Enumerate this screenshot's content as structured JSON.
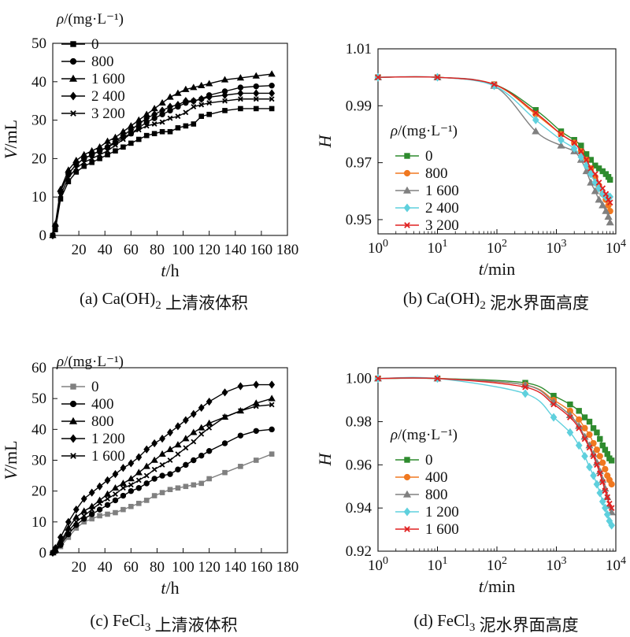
{
  "chart_data": [
    {
      "id": "a",
      "type": "line",
      "caption": "(a) Ca(OH)₂ 上清液体积",
      "xlabel_var": "t",
      "xlabel_unit": "/h",
      "ylabel_var": "V",
      "ylabel_unit": "/mL",
      "legend_title_var": "ρ",
      "legend_title_unit": "/(mg·L⁻¹)",
      "legend_position": "top-left",
      "xlim": [
        0,
        180
      ],
      "ylim": [
        0,
        50
      ],
      "xticks": [
        "20",
        "40",
        "60",
        "80",
        "100",
        "120",
        "140",
        "160",
        "180"
      ],
      "yticks": [
        "0",
        "10",
        "20",
        "30",
        "40",
        "50"
      ],
      "x": [
        0,
        2,
        6,
        12,
        18,
        24,
        30,
        36,
        42,
        48,
        54,
        60,
        66,
        72,
        78,
        84,
        90,
        96,
        102,
        108,
        114,
        120,
        132,
        144,
        156,
        168
      ],
      "series": [
        {
          "name": "0",
          "color": "#000000",
          "marker": "square",
          "values": [
            0,
            1.5,
            9.5,
            14,
            16.5,
            18,
            19,
            20,
            21,
            22,
            23,
            24,
            25,
            26,
            26.5,
            27,
            27,
            28,
            28.5,
            29,
            31,
            31.5,
            32.5,
            33,
            33,
            33
          ]
        },
        {
          "name": "800",
          "color": "#000000",
          "marker": "circle",
          "values": [
            0,
            2.5,
            11.5,
            16,
            18.5,
            20,
            21,
            22,
            23,
            24,
            25.5,
            26.5,
            28,
            29.5,
            30.5,
            31.5,
            32.5,
            33.5,
            34.5,
            35,
            35.5,
            36.5,
            37.5,
            38.5,
            38.8,
            39
          ]
        },
        {
          "name": "1 600",
          "color": "#000000",
          "marker": "triangle",
          "values": [
            0,
            3,
            12,
            17,
            19.5,
            21,
            22,
            23,
            24.5,
            25.5,
            27,
            28.5,
            30,
            31.5,
            33,
            34.5,
            36,
            37,
            38,
            38.5,
            39,
            39.5,
            40.5,
            41,
            41.5,
            42
          ]
        },
        {
          "name": "2 400",
          "color": "#000000",
          "marker": "diamond",
          "values": [
            0,
            2.5,
            11.5,
            16,
            18.5,
            20,
            21,
            22,
            23,
            24.5,
            26,
            27.5,
            29,
            30.5,
            31.5,
            32.5,
            33.5,
            34,
            35,
            35,
            35.5,
            36,
            36.5,
            37,
            37,
            37
          ]
        },
        {
          "name": "3 200",
          "color": "#000000",
          "marker": "x",
          "values": [
            0,
            2,
            10.5,
            15,
            17.5,
            19,
            20,
            21,
            22,
            23.5,
            25,
            26.5,
            27.5,
            28.5,
            29,
            29.5,
            30.5,
            31,
            32,
            33.5,
            34,
            34.5,
            35,
            35.5,
            35.5,
            35.5
          ]
        }
      ]
    },
    {
      "id": "b",
      "type": "line",
      "caption": "(b) Ca(OH)₂ 泥水界面高度",
      "xlabel_var": "t",
      "xlabel_unit": "/min",
      "ylabel_var": "H",
      "ylabel_unit": "",
      "legend_title_var": "ρ",
      "legend_title_unit": "/(mg·L⁻¹)",
      "legend_position": "left",
      "xscale": "log",
      "xlim": [
        1,
        10000
      ],
      "ylim": [
        0.945,
        1.01
      ],
      "xticks": [
        {
          "base": "10",
          "exp": "0"
        },
        {
          "base": "10",
          "exp": "1"
        },
        {
          "base": "10",
          "exp": "2"
        },
        {
          "base": "10",
          "exp": "3"
        },
        {
          "base": "10",
          "exp": "4"
        }
      ],
      "yticks": [
        "0.95",
        "0.97",
        "0.99",
        "1.01"
      ],
      "x": [
        1,
        10,
        90,
        450,
        1200,
        2000,
        2600,
        3200,
        3800,
        4500,
        5200,
        6000,
        6800,
        7500,
        8000
      ],
      "series": [
        {
          "name": "0",
          "color": "#2e8b2e",
          "marker": "square",
          "values": [
            1.0,
            1.0,
            0.9975,
            0.9885,
            0.981,
            0.978,
            0.976,
            0.973,
            0.971,
            0.969,
            0.968,
            0.967,
            0.966,
            0.965,
            0.964
          ]
        },
        {
          "name": "800",
          "color": "#f07820",
          "marker": "circle",
          "values": [
            1.0,
            1.0,
            0.9975,
            0.987,
            0.98,
            0.977,
            0.974,
            0.971,
            0.968,
            0.965,
            0.962,
            0.959,
            0.957,
            0.955,
            0.953
          ]
        },
        {
          "name": "1 600",
          "color": "#808080",
          "marker": "triangle",
          "values": [
            1.0,
            1.0,
            0.997,
            0.981,
            0.976,
            0.974,
            0.971,
            0.967,
            0.963,
            0.96,
            0.957,
            0.955,
            0.953,
            0.951,
            0.949
          ]
        },
        {
          "name": "2 400",
          "color": "#5fd0dd",
          "marker": "diamond",
          "values": [
            1.0,
            1.0,
            0.997,
            0.985,
            0.978,
            0.975,
            0.972,
            0.969,
            0.966,
            0.963,
            0.961,
            0.959,
            0.958,
            0.958,
            0.958
          ]
        },
        {
          "name": "3 200",
          "color": "#e02020",
          "marker": "x",
          "values": [
            1.0,
            1.0,
            0.9975,
            0.9875,
            0.98,
            0.977,
            0.974,
            0.971,
            0.968,
            0.966,
            0.963,
            0.961,
            0.959,
            0.957,
            0.956
          ]
        }
      ]
    },
    {
      "id": "c",
      "type": "line",
      "caption": "(c) FeCl₃ 上清液体积",
      "xlabel_var": "t",
      "xlabel_unit": "/h",
      "ylabel_var": "V",
      "ylabel_unit": "/mL",
      "legend_title_var": "ρ",
      "legend_title_unit": "/(mg·L⁻¹)",
      "legend_position": "top-left",
      "xlim": [
        0,
        180
      ],
      "ylim": [
        0,
        60
      ],
      "xticks": [
        "20",
        "40",
        "60",
        "80",
        "100",
        "120",
        "140",
        "160",
        "180"
      ],
      "yticks": [
        "0",
        "10",
        "20",
        "30",
        "40",
        "50",
        "60"
      ],
      "x": [
        0,
        2,
        6,
        12,
        18,
        24,
        30,
        36,
        42,
        48,
        54,
        60,
        66,
        72,
        78,
        84,
        90,
        96,
        102,
        108,
        114,
        120,
        132,
        144,
        156,
        168
      ],
      "series": [
        {
          "name": "0",
          "color": "#808080",
          "marker": "square",
          "values": [
            0,
            0.5,
            2,
            5,
            8,
            10,
            11,
            12,
            12.5,
            13,
            14,
            15,
            16,
            17,
            18.5,
            19.5,
            20.5,
            21,
            21.5,
            22,
            22.5,
            24,
            26,
            28,
            30,
            32
          ]
        },
        {
          "name": "400",
          "color": "#000000",
          "marker": "circle",
          "values": [
            0,
            0.5,
            2.5,
            6,
            9,
            11,
            12.5,
            14,
            15.5,
            17,
            18.5,
            20,
            21,
            22.5,
            24,
            25,
            25.5,
            27,
            28.5,
            30,
            31.5,
            33,
            35.5,
            38,
            39.5,
            40
          ]
        },
        {
          "name": "800",
          "color": "#000000",
          "marker": "triangle",
          "values": [
            0,
            1,
            3.5,
            8,
            11.5,
            13.5,
            15,
            17,
            19,
            21,
            22.5,
            24,
            26,
            28,
            30,
            32,
            33.5,
            35,
            37,
            39,
            40.5,
            42,
            44,
            46,
            48.5,
            50
          ]
        },
        {
          "name": "1 200",
          "color": "#000000",
          "marker": "diamond",
          "values": [
            0,
            1.5,
            5,
            10,
            14,
            17.5,
            19.5,
            21.5,
            23.5,
            25.5,
            27.5,
            29,
            31,
            33.5,
            35.5,
            37,
            39,
            41,
            43,
            45,
            47,
            49,
            52,
            54,
            54.5,
            54.5
          ]
        },
        {
          "name": "1 600",
          "color": "#000000",
          "marker": "x",
          "values": [
            0,
            1,
            3,
            7,
            10,
            12,
            14,
            16,
            17.5,
            19,
            21,
            22,
            23.5,
            25,
            27,
            28.5,
            30,
            32,
            34,
            36,
            38.5,
            40.5,
            44,
            46,
            47.5,
            48
          ]
        }
      ]
    },
    {
      "id": "d",
      "type": "line",
      "caption": "(d) FeCl₃ 泥水界面高度",
      "xlabel_var": "t",
      "xlabel_unit": "/min",
      "ylabel_var": "H",
      "ylabel_unit": "",
      "legend_title_var": "ρ",
      "legend_title_unit": "/(mg·L⁻¹)",
      "legend_position": "left",
      "xscale": "log",
      "xlim": [
        1,
        10000
      ],
      "ylim": [
        0.92,
        1.005
      ],
      "xticks": [
        {
          "base": "10",
          "exp": "0"
        },
        {
          "base": "10",
          "exp": "1"
        },
        {
          "base": "10",
          "exp": "2"
        },
        {
          "base": "10",
          "exp": "3"
        },
        {
          "base": "10",
          "exp": "4"
        }
      ],
      "yticks": [
        "0.92",
        "0.94",
        "0.96",
        "0.98",
        "1.00"
      ],
      "x": [
        1,
        10,
        300,
        900,
        1700,
        2400,
        3000,
        3600,
        4200,
        4800,
        5400,
        6000,
        6600,
        7200,
        7800,
        8500
      ],
      "series": [
        {
          "name": "0",
          "color": "#2e8b2e",
          "marker": "square",
          "values": [
            1.0,
            1.0,
            0.998,
            0.992,
            0.988,
            0.985,
            0.982,
            0.98,
            0.977,
            0.975,
            0.972,
            0.969,
            0.967,
            0.965,
            0.963,
            0.962
          ]
        },
        {
          "name": "400",
          "color": "#f07820",
          "marker": "circle",
          "values": [
            1.0,
            1.0,
            0.997,
            0.99,
            0.985,
            0.981,
            0.977,
            0.974,
            0.97,
            0.967,
            0.964,
            0.961,
            0.958,
            0.955,
            0.953,
            0.951
          ]
        },
        {
          "name": "800",
          "color": "#808080",
          "marker": "triangle",
          "values": [
            1.0,
            1.0,
            0.997,
            0.989,
            0.983,
            0.978,
            0.973,
            0.969,
            0.965,
            0.961,
            0.957,
            0.953,
            0.949,
            0.945,
            0.941,
            0.938
          ]
        },
        {
          "name": "1 200",
          "color": "#5fd0dd",
          "marker": "diamond",
          "values": [
            1.0,
            1.0,
            0.993,
            0.982,
            0.975,
            0.969,
            0.964,
            0.959,
            0.955,
            0.951,
            0.947,
            0.943,
            0.94,
            0.937,
            0.934,
            0.932
          ]
        },
        {
          "name": "1 600",
          "color": "#e02020",
          "marker": "x",
          "values": [
            1.0,
            1.0,
            0.996,
            0.988,
            0.982,
            0.977,
            0.972,
            0.968,
            0.964,
            0.96,
            0.956,
            0.952,
            0.948,
            0.945,
            0.942,
            0.94
          ]
        }
      ]
    }
  ]
}
